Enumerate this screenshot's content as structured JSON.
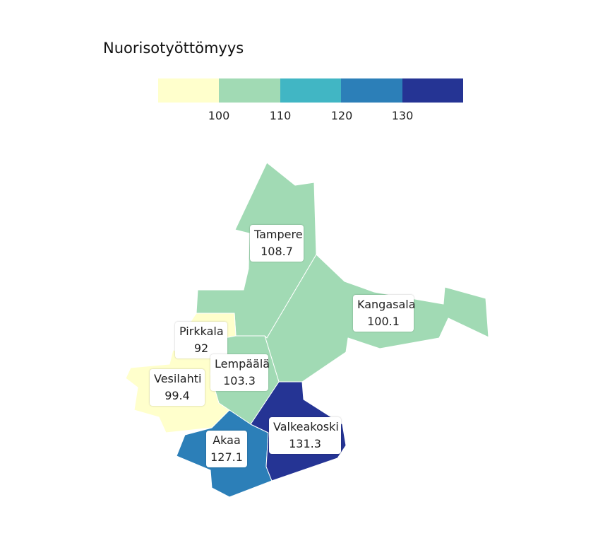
{
  "title": "Nuorisotyöttömyys",
  "legend": {
    "colors": [
      "#ffffcc",
      "#a1dab4",
      "#41b6c4",
      "#2c7fb8",
      "#253494"
    ],
    "ticks": [
      "100",
      "110",
      "120",
      "130"
    ]
  },
  "regions": [
    {
      "name": "Tampere",
      "value": "108.7",
      "color": "#a1dab4"
    },
    {
      "name": "Kangasala",
      "value": "100.1",
      "color": "#a1dab4"
    },
    {
      "name": "Pirkkala",
      "value": "92",
      "color": "#ffffcc"
    },
    {
      "name": "Lempäälä",
      "value": "103.3",
      "color": "#a1dab4"
    },
    {
      "name": "Vesilahti",
      "value": "99.4",
      "color": "#ffffcc"
    },
    {
      "name": "Akaa",
      "value": "127.1",
      "color": "#2c7fb8"
    },
    {
      "name": "Valkeakoski",
      "value": "131.3",
      "color": "#253494"
    }
  ]
}
